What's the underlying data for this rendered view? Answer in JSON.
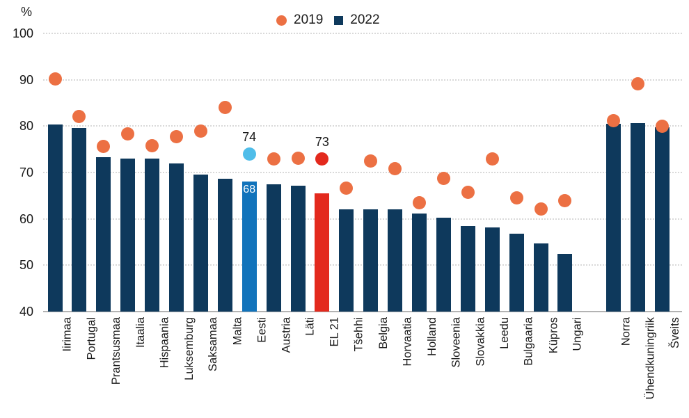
{
  "page": {
    "background": "#ffffff"
  },
  "legend": {
    "position": "top-center",
    "items": [
      {
        "label": "2019",
        "marker": "circle",
        "color": "#EC7043"
      },
      {
        "label": "2022",
        "marker": "square",
        "color": "#0E395C"
      }
    ]
  },
  "chart_data": {
    "type": "bar",
    "subtype": "bars-with-dot-overlay",
    "title": "",
    "unit_label": "%",
    "xlabel": "",
    "ylabel": "%",
    "ylim": [
      40,
      100
    ],
    "yticks": [
      100,
      90,
      80,
      70,
      60,
      50,
      40
    ],
    "grid": "dotted-horizontal",
    "legend_position": "top-center",
    "gap_after_category": "Ungari",
    "categories": [
      "Iirimaa",
      "Portugal",
      "Prantsusmaa",
      "Itaalia",
      "Hispaania",
      "Luksemburg",
      "Saksamaa",
      "Malta",
      "Eesti",
      "Austria",
      "Läti",
      "EL 21",
      "Tšehhi",
      "Belgia",
      "Horvaatia",
      "Holland",
      "Sloveenia",
      "Slovakkia",
      "Leedu",
      "Bulgaaria",
      "Küpros",
      "Ungari",
      "Norra",
      "Ühendkuningriik",
      "Šveits"
    ],
    "series": [
      {
        "name": "2019",
        "mark": "dot",
        "color": "#EC7043",
        "values": [
          90.2,
          82.1,
          75.7,
          78.3,
          75.8,
          77.8,
          79.0,
          84.1,
          74,
          73.0,
          73.1,
          73,
          66.6,
          72.5,
          70.8,
          63.5,
          68.8,
          65.8,
          72.9,
          64.5,
          62.1,
          64.0,
          81.2,
          89.2,
          80.0
        ]
      },
      {
        "name": "2022",
        "mark": "bar",
        "color": "#0E395C",
        "values": [
          80.3,
          79.6,
          73.3,
          73.0,
          73.0,
          71.9,
          69.5,
          68.7,
          68,
          67.4,
          67.1,
          65.5,
          62.0,
          62.0,
          62.0,
          61.1,
          60.3,
          58.4,
          58.1,
          56.8,
          54.7,
          52.4,
          80.5,
          80.7,
          79.7
        ]
      }
    ],
    "highlights": [
      {
        "category": "Eesti",
        "bar_color": "#1173BB",
        "dot_color": "#4FBDE9"
      },
      {
        "category": "EL 21",
        "bar_color": "#E3291D",
        "dot_color": "#E3291D"
      }
    ],
    "annotations": [
      {
        "category": "Eesti",
        "series": "2019",
        "text": "74",
        "placement": "above-dot",
        "color": "#1A1A1A"
      },
      {
        "category": "Eesti",
        "series": "2022",
        "text": "68",
        "placement": "inside-bar-top",
        "color": "#FFFFFF"
      },
      {
        "category": "EL 21",
        "series": "2019",
        "text": "73",
        "placement": "above-dot",
        "color": "#1A1A1A"
      }
    ],
    "colors": {
      "grid": "#D9D9D9",
      "baseline": "#B3B3B3",
      "text": "#1A1A1A"
    }
  }
}
